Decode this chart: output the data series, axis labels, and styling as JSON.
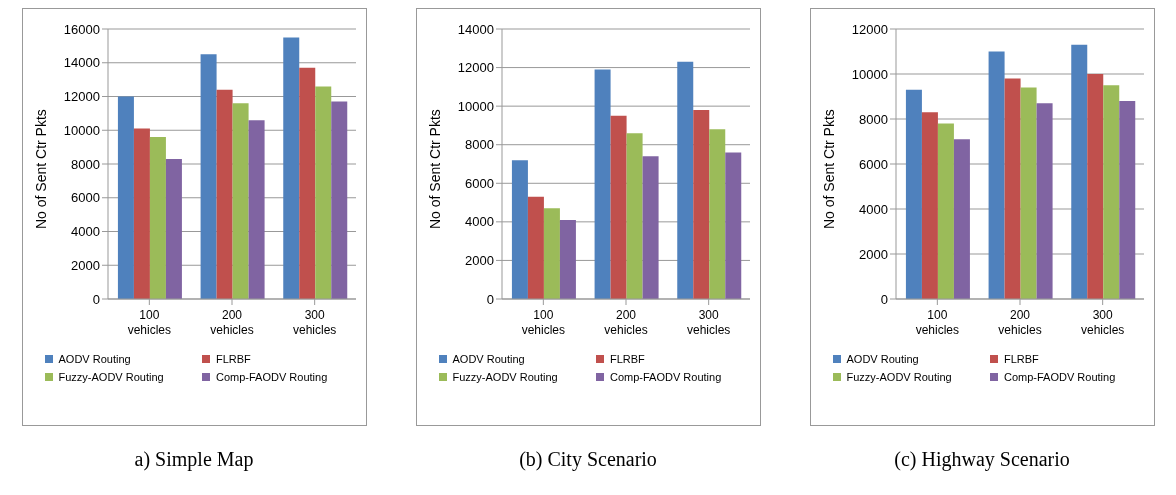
{
  "chart_data": [
    {
      "type": "bar",
      "title": "a) Simple Map",
      "ylabel": "No of Sent Ctr Pkts",
      "categories": [
        "100 vehicles",
        "200 vehicles",
        "300 vehicles"
      ],
      "ylim": [
        0,
        16000
      ],
      "yticks": [
        0,
        2000,
        4000,
        6000,
        8000,
        10000,
        12000,
        14000,
        16000
      ],
      "grid": "y",
      "legend": "bottom",
      "series": [
        {
          "name": "AODV Routing",
          "color": "#4f81bd",
          "values": [
            12000,
            14500,
            15500
          ]
        },
        {
          "name": "FLRBF",
          "color": "#c0504d",
          "values": [
            10100,
            12400,
            13700
          ]
        },
        {
          "name": "Fuzzy-AODV Routing",
          "color": "#9bbb59",
          "values": [
            9600,
            11600,
            12600
          ]
        },
        {
          "name": "Comp-FAODV Routing",
          "color": "#8064a2",
          "values": [
            8300,
            10600,
            11700
          ]
        }
      ]
    },
    {
      "type": "bar",
      "title": "(b) City Scenario",
      "ylabel": "No of Sent Ctr Pkts",
      "categories": [
        "100 vehicles",
        "200 vehicles",
        "300 vehicles"
      ],
      "ylim": [
        0,
        14000
      ],
      "yticks": [
        0,
        2000,
        4000,
        6000,
        8000,
        10000,
        12000,
        14000
      ],
      "grid": "y",
      "legend": "bottom",
      "series": [
        {
          "name": "AODV Routing",
          "color": "#4f81bd",
          "values": [
            7200,
            11900,
            12300
          ]
        },
        {
          "name": "FLRBF",
          "color": "#c0504d",
          "values": [
            5300,
            9500,
            9800
          ]
        },
        {
          "name": "Fuzzy-AODV Routing",
          "color": "#9bbb59",
          "values": [
            4700,
            8600,
            8800
          ]
        },
        {
          "name": "Comp-FAODV Routing",
          "color": "#8064a2",
          "values": [
            4100,
            7400,
            7600
          ]
        }
      ]
    },
    {
      "type": "bar",
      "title": "(c) Highway Scenario",
      "ylabel": "No of Sent Ctr Pkts",
      "categories": [
        "100 vehicles",
        "200 vehicles",
        "300 vehicles"
      ],
      "ylim": [
        0,
        12000
      ],
      "yticks": [
        0,
        2000,
        4000,
        6000,
        8000,
        10000,
        12000
      ],
      "grid": "y",
      "legend": "bottom",
      "series": [
        {
          "name": "AODV Routing",
          "color": "#4f81bd",
          "values": [
            9300,
            11000,
            11300
          ]
        },
        {
          "name": "FLRBF",
          "color": "#c0504d",
          "values": [
            8300,
            9800,
            10000
          ]
        },
        {
          "name": "Fuzzy-AODV Routing",
          "color": "#9bbb59",
          "values": [
            7800,
            9400,
            9500
          ]
        },
        {
          "name": "Comp-FAODV Routing",
          "color": "#8064a2",
          "values": [
            7100,
            8700,
            8800
          ]
        }
      ]
    }
  ]
}
